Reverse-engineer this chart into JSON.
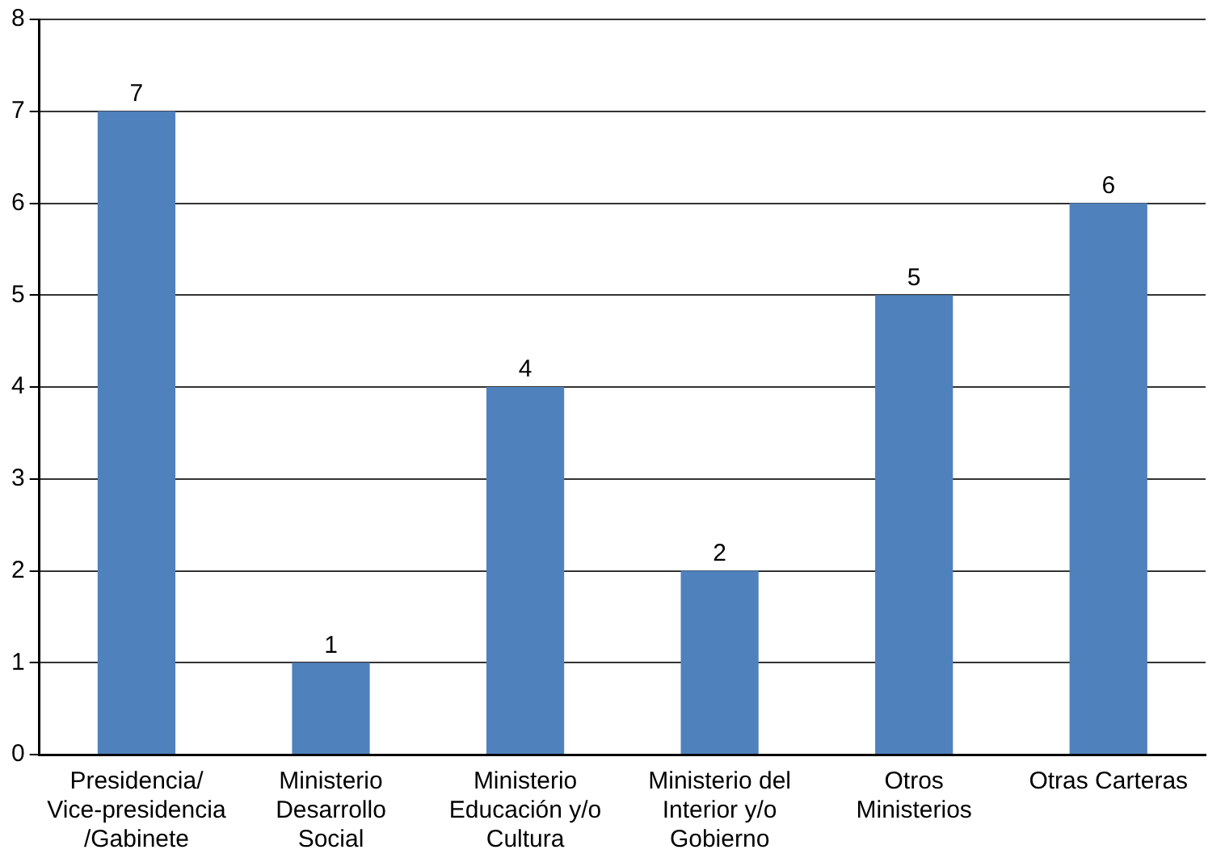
{
  "chart_data": {
    "type": "bar",
    "categories": [
      "Presidencia/Vice-presidencia/Gabinete",
      "Ministerio Desarrollo Social",
      "Ministerio Educación y/o Cultura",
      "Ministerio del Interior y/o Gobierno",
      "Otros Ministerios",
      "Otras Carteras"
    ],
    "values": [
      7,
      1,
      4,
      2,
      5,
      6
    ],
    "color": "#4f81bd",
    "ylim": [
      0,
      8
    ],
    "yticks": [
      0,
      1,
      2,
      3,
      4,
      5,
      6,
      7,
      8
    ],
    "grid": "y",
    "data_labels": true,
    "legend": false
  }
}
